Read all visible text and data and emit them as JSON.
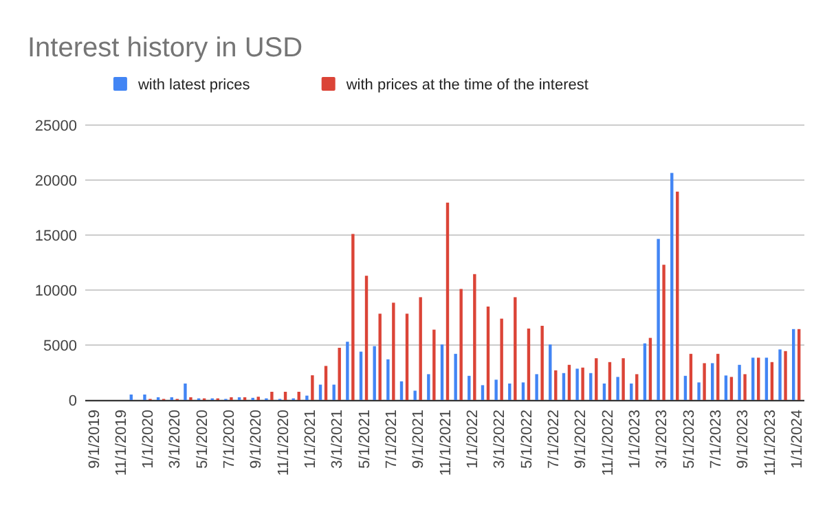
{
  "chart_data": {
    "type": "bar",
    "title": "Interest history in USD",
    "categories": [
      "9/1/2019",
      null,
      "11/1/2019",
      null,
      "1/1/2020",
      null,
      "3/1/2020",
      null,
      "5/1/2020",
      null,
      "7/1/2020",
      null,
      "9/1/2020",
      null,
      "11/1/2020",
      null,
      "1/1/2021",
      null,
      "3/1/2021",
      null,
      "5/1/2021",
      null,
      "7/1/2021",
      null,
      "9/1/2021",
      null,
      "11/1/2021",
      null,
      "1/1/2022",
      null,
      "3/1/2022",
      null,
      "5/1/2022",
      null,
      "7/1/2022",
      null,
      "9/1/2022",
      null,
      "11/1/2022",
      null,
      "1/1/2023",
      null,
      "3/1/2023",
      null,
      "5/1/2023",
      null,
      "7/1/2023",
      null,
      "9/1/2023",
      null,
      "11/1/2023",
      null,
      "1/1/2024"
    ],
    "series": [
      {
        "name": "with latest prices",
        "color": "#4285f4",
        "values": [
          0,
          0,
          0,
          500,
          500,
          250,
          250,
          1500,
          150,
          150,
          100,
          250,
          200,
          150,
          100,
          150,
          400,
          1400,
          1400,
          5300,
          4400,
          4900,
          3700,
          1700,
          850,
          2350,
          5050,
          4200,
          2200,
          1350,
          1850,
          1500,
          1600,
          2350,
          5050,
          2450,
          2850,
          2450,
          1500,
          2100,
          1500,
          5150,
          14650,
          20650,
          2200,
          1600,
          3350,
          2230,
          3200,
          3850,
          3850,
          4600,
          6450
        ]
      },
      {
        "name": "with prices at the time of the interest",
        "color": "#db4437",
        "values": [
          0,
          0,
          0,
          0,
          100,
          100,
          100,
          250,
          150,
          150,
          250,
          250,
          300,
          750,
          750,
          750,
          2250,
          3100,
          4750,
          15100,
          11300,
          7850,
          8850,
          7850,
          9350,
          6400,
          17950,
          10100,
          11450,
          8500,
          7400,
          9350,
          6500,
          6750,
          2700,
          3200,
          2950,
          3800,
          3450,
          3800,
          2350,
          5650,
          12300,
          18950,
          4200,
          3350,
          4200,
          2100,
          2350,
          3850,
          3450,
          4450,
          6450
        ]
      }
    ],
    "ylim": [
      0,
      25000
    ],
    "yticks": [
      0,
      5000,
      10000,
      15000,
      20000,
      25000
    ],
    "grid": "y",
    "legend": "top"
  }
}
